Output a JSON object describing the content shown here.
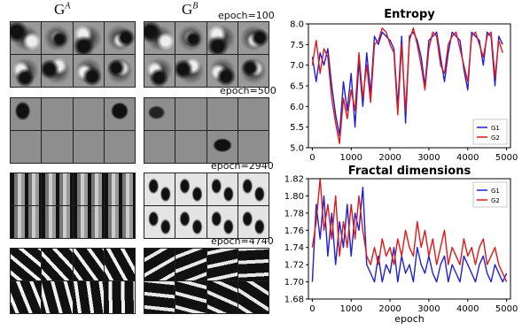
{
  "left_panel": {
    "gen_a": {
      "base": "G",
      "sup": "A"
    },
    "gen_b": {
      "base": "G",
      "sup": "B"
    },
    "epochs": [
      "epoch=100",
      "epoch=500",
      "epoch=2940",
      "epoch=4740"
    ]
  },
  "chart_data": [
    {
      "type": "line",
      "title": "Entropy",
      "xlabel": "",
      "ylabel": "",
      "xlim": [
        -100,
        5100
      ],
      "ylim": [
        5.0,
        8.0
      ],
      "xticks": [
        0,
        1000,
        2000,
        3000,
        4000,
        5000
      ],
      "yticks": [
        5.0,
        5.5,
        6.0,
        6.5,
        7.0,
        7.5,
        8.0
      ],
      "legend_position": "bottom-right",
      "series": [
        {
          "name": "G1",
          "color": "#1f1fd6",
          "x": [
            0,
            100,
            200,
            300,
            400,
            500,
            600,
            700,
            800,
            900,
            1000,
            1100,
            1200,
            1300,
            1400,
            1500,
            1600,
            1700,
            1800,
            1900,
            2000,
            2100,
            2200,
            2300,
            2400,
            2500,
            2600,
            2700,
            2800,
            2900,
            3000,
            3100,
            3200,
            3300,
            3400,
            3500,
            3600,
            3700,
            3800,
            3900,
            4000,
            4100,
            4200,
            4300,
            4400,
            4500,
            4600,
            4700,
            4800,
            4900
          ],
          "values": [
            7.2,
            6.6,
            7.3,
            7.0,
            7.4,
            6.5,
            5.8,
            5.3,
            6.6,
            5.9,
            6.8,
            5.5,
            7.1,
            6.0,
            7.3,
            6.3,
            7.7,
            7.5,
            7.8,
            7.7,
            7.6,
            7.4,
            6.0,
            7.7,
            5.6,
            7.7,
            7.8,
            7.6,
            7.2,
            6.5,
            7.6,
            7.7,
            7.8,
            7.2,
            6.6,
            7.3,
            7.8,
            7.7,
            7.6,
            6.9,
            6.4,
            7.8,
            7.7,
            7.6,
            7.0,
            7.8,
            7.7,
            6.5,
            7.7,
            7.5
          ]
        },
        {
          "name": "G2",
          "color": "#e01818",
          "x": [
            0,
            100,
            200,
            300,
            400,
            500,
            600,
            700,
            800,
            900,
            1000,
            1100,
            1200,
            1300,
            1400,
            1500,
            1600,
            1700,
            1800,
            1900,
            2000,
            2100,
            2200,
            2300,
            2400,
            2500,
            2600,
            2700,
            2800,
            2900,
            3000,
            3100,
            3200,
            3300,
            3400,
            3500,
            3600,
            3700,
            3800,
            3900,
            4000,
            4100,
            4200,
            4300,
            4400,
            4500,
            4600,
            4700,
            4800,
            4900
          ],
          "values": [
            7.0,
            7.6,
            6.8,
            7.4,
            7.2,
            6.2,
            5.6,
            5.1,
            6.2,
            5.7,
            6.4,
            5.9,
            7.3,
            6.2,
            7.0,
            6.1,
            7.5,
            7.6,
            7.9,
            7.8,
            7.5,
            7.3,
            5.8,
            7.5,
            5.9,
            7.6,
            7.9,
            7.5,
            7.0,
            6.4,
            7.4,
            7.8,
            7.7,
            7.0,
            6.8,
            7.5,
            7.7,
            7.8,
            7.4,
            7.0,
            6.6,
            7.7,
            7.8,
            7.5,
            7.2,
            7.7,
            7.8,
            6.7,
            7.6,
            7.3
          ]
        }
      ]
    },
    {
      "type": "line",
      "title": "Fractal dimensions",
      "xlabel": "epoch",
      "ylabel": "",
      "xlim": [
        -100,
        5100
      ],
      "ylim": [
        1.68,
        1.82
      ],
      "xticks": [
        0,
        1000,
        2000,
        3000,
        4000,
        5000
      ],
      "yticks": [
        1.68,
        1.7,
        1.72,
        1.74,
        1.76,
        1.78,
        1.8,
        1.82
      ],
      "legend_position": "top-right",
      "series": [
        {
          "name": "G1",
          "color": "#1f1fd6",
          "x": [
            0,
            100,
            200,
            300,
            400,
            500,
            600,
            700,
            800,
            900,
            1000,
            1100,
            1200,
            1300,
            1400,
            1500,
            1600,
            1700,
            1800,
            1900,
            2000,
            2100,
            2200,
            2300,
            2400,
            2500,
            2600,
            2700,
            2800,
            2900,
            3000,
            3100,
            3200,
            3300,
            3400,
            3500,
            3600,
            3700,
            3800,
            3900,
            4000,
            4100,
            4200,
            4300,
            4400,
            4500,
            4600,
            4700,
            4800,
            4900,
            5000
          ],
          "values": [
            1.7,
            1.79,
            1.75,
            1.8,
            1.73,
            1.78,
            1.72,
            1.77,
            1.74,
            1.79,
            1.73,
            1.78,
            1.76,
            1.81,
            1.72,
            1.71,
            1.7,
            1.73,
            1.7,
            1.72,
            1.71,
            1.74,
            1.7,
            1.73,
            1.71,
            1.72,
            1.7,
            1.74,
            1.72,
            1.71,
            1.73,
            1.71,
            1.7,
            1.72,
            1.73,
            1.7,
            1.72,
            1.71,
            1.7,
            1.73,
            1.72,
            1.71,
            1.7,
            1.72,
            1.73,
            1.71,
            1.7,
            1.72,
            1.71,
            1.7,
            1.71
          ]
        },
        {
          "name": "G2",
          "color": "#e01818",
          "x": [
            0,
            100,
            200,
            300,
            400,
            500,
            600,
            700,
            800,
            900,
            1000,
            1100,
            1200,
            1300,
            1400,
            1500,
            1600,
            1700,
            1800,
            1900,
            2000,
            2100,
            2200,
            2300,
            2400,
            2500,
            2600,
            2700,
            2800,
            2900,
            3000,
            3100,
            3200,
            3300,
            3400,
            3500,
            3600,
            3700,
            3800,
            3900,
            4000,
            4100,
            4200,
            4300,
            4400,
            4500,
            4600,
            4700,
            4800,
            4900,
            5000
          ],
          "values": [
            1.74,
            1.77,
            1.82,
            1.76,
            1.79,
            1.75,
            1.8,
            1.73,
            1.77,
            1.74,
            1.79,
            1.75,
            1.8,
            1.76,
            1.73,
            1.72,
            1.74,
            1.72,
            1.75,
            1.73,
            1.74,
            1.72,
            1.75,
            1.73,
            1.76,
            1.74,
            1.73,
            1.77,
            1.74,
            1.76,
            1.73,
            1.75,
            1.72,
            1.74,
            1.76,
            1.72,
            1.74,
            1.73,
            1.72,
            1.75,
            1.73,
            1.74,
            1.72,
            1.74,
            1.75,
            1.72,
            1.73,
            1.74,
            1.72,
            1.71,
            1.7
          ]
        }
      ]
    }
  ]
}
